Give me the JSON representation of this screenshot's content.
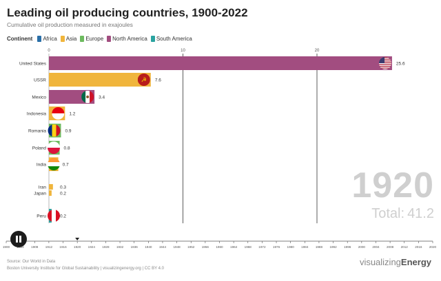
{
  "header": {
    "title": "Leading oil producing countries, 1900-2022",
    "subtitle": "Cumulative oil production measured in exajoules"
  },
  "legend": {
    "title": "Continent",
    "items": [
      {
        "label": "Africa",
        "color": "#2a6fa8"
      },
      {
        "label": "Asia",
        "color": "#f0b53c"
      },
      {
        "label": "Europe",
        "color": "#6dbb5f"
      },
      {
        "label": "North America",
        "color": "#a24d80"
      },
      {
        "label": "South America",
        "color": "#2aa3a0"
      }
    ]
  },
  "chart_data": {
    "type": "bar",
    "orientation": "horizontal",
    "xlim": [
      0,
      30
    ],
    "x_ticks": [
      "0",
      "10",
      "20"
    ],
    "categories": [
      "United States",
      "USSR",
      "Mexico",
      "Indonesia",
      "Romania",
      "Poland",
      "India",
      "Iran",
      "Japan",
      "Peru"
    ],
    "values": [
      25.6,
      7.6,
      3.4,
      1.2,
      0.9,
      0.8,
      0.7,
      0.3,
      0.2,
      0.2
    ],
    "value_labels": [
      "25.6",
      "7.6",
      "3.4",
      "1.2",
      "0.9",
      "0.8",
      "0.7",
      "0.3",
      "0.2",
      "0.2"
    ],
    "continents": [
      "North America",
      "Asia",
      "North America",
      "Asia",
      "Europe",
      "Europe",
      "Asia",
      "Asia",
      "Asia",
      "South America"
    ],
    "flags": [
      "us-flag",
      "ussr-flag",
      "mexico-flag",
      "indonesia-flag",
      "romania-flag",
      "poland-flag",
      "india-flag",
      "iran-flag",
      "japan-flag",
      "peru-flag"
    ],
    "current_year": "1920",
    "total_label": "Total:",
    "total_value": "41.2"
  },
  "timeline": {
    "years": [
      "1900",
      "1904",
      "1908",
      "1912",
      "1916",
      "1920",
      "1924",
      "1928",
      "1932",
      "1936",
      "1940",
      "1944",
      "1948",
      "1952",
      "1956",
      "1960",
      "1964",
      "1968",
      "1972",
      "1976",
      "1980",
      "1984",
      "1988",
      "1992",
      "1996",
      "2000",
      "2004",
      "2008",
      "2012",
      "2016",
      "2020"
    ],
    "current": "1920"
  },
  "footer": {
    "source": "Source: Our World in Data",
    "credits": "Boston University Institute for Global Sustainability | visualizingenergy.org | CC BY 4.0",
    "brand_light": "visualizing",
    "brand_bold": "Energy"
  }
}
